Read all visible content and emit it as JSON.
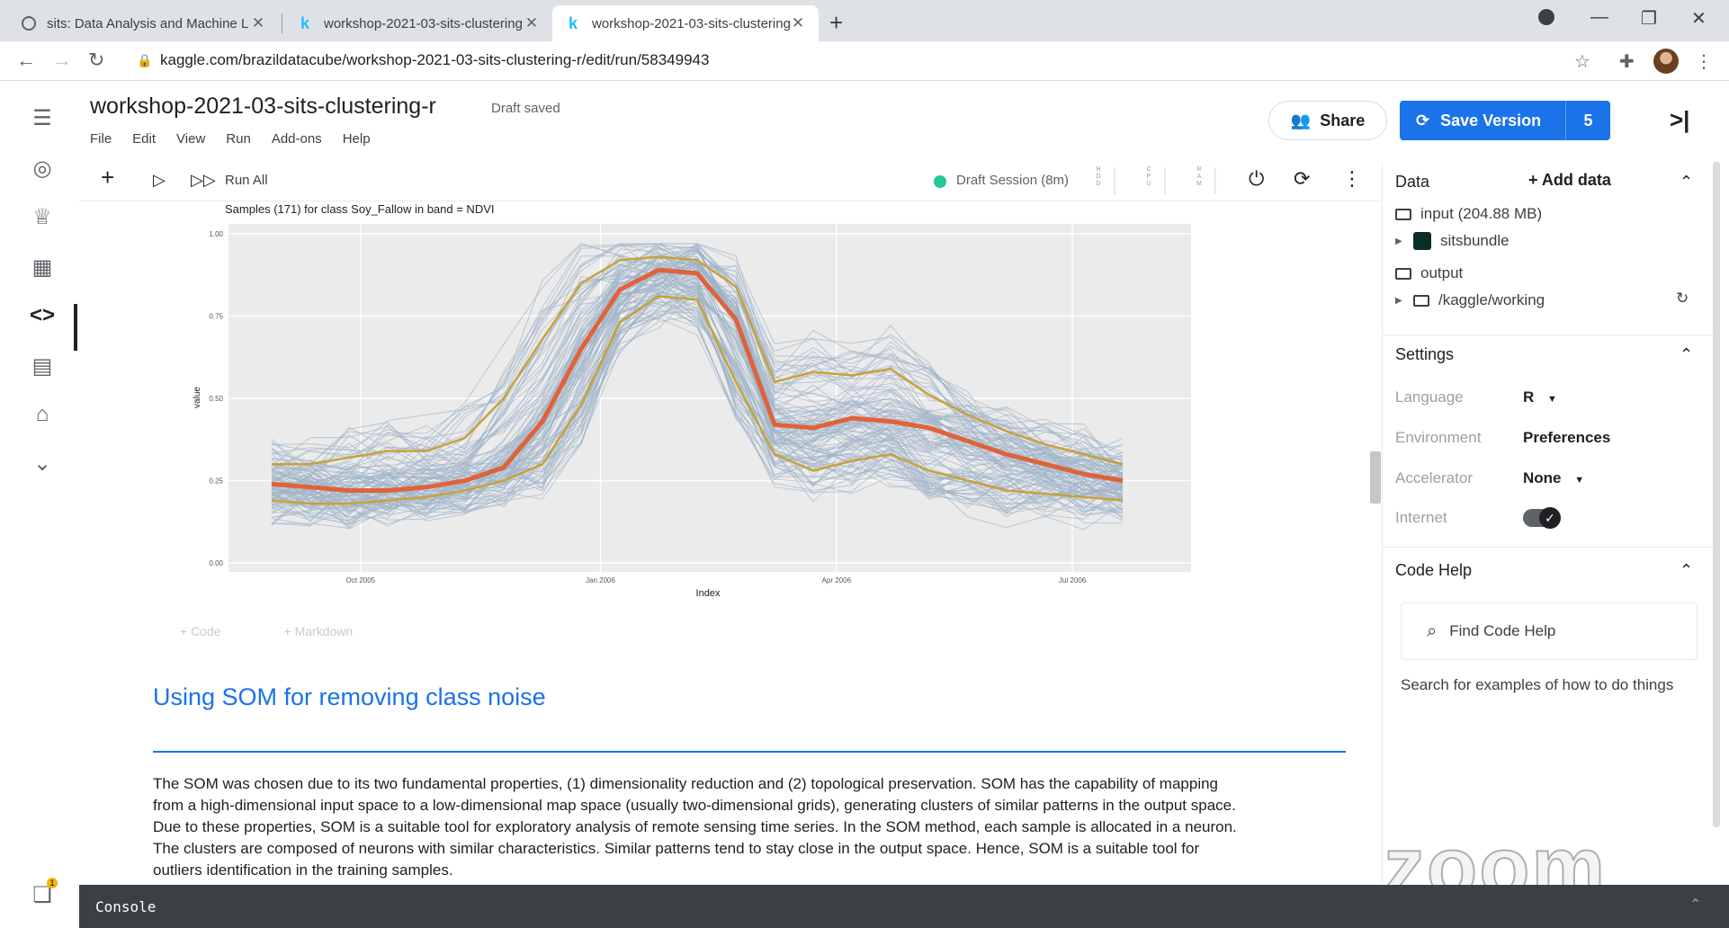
{
  "browser": {
    "tabs": [
      {
        "title": "sits: Data Analysis and Machine L",
        "favicon": "globe-icon",
        "active": false
      },
      {
        "title": "workshop-2021-03-sits-clustering",
        "favicon": "kaggle-k-icon",
        "active": false
      },
      {
        "title": "workshop-2021-03-sits-clustering",
        "favicon": "kaggle-k-icon",
        "active": true
      }
    ],
    "url": "kaggle.com/brazildatacube/workshop-2021-03-sits-clustering-r/edit/run/58349943"
  },
  "header": {
    "title": "workshop-2021-03-sits-clustering-r",
    "status": "Draft saved",
    "menu": [
      "File",
      "Edit",
      "View",
      "Run",
      "Add-ons",
      "Help"
    ],
    "share_label": "Share",
    "save_version_label": "Save Version",
    "save_version_count": "5"
  },
  "toolbar": {
    "run_all_label": "Run All",
    "session_label": "Draft Session (8m)",
    "session_color": "#20c997",
    "meters": [
      "H\nD\nD",
      "C\nP\nU",
      "R\nA\nM"
    ]
  },
  "chart_data": {
    "type": "line",
    "title": "Samples (171) for class Soy_Fallow in band = NDVI",
    "xlabel": "Index",
    "ylabel": "value",
    "x_ticks": [
      "Oct 2005",
      "Jan 2006",
      "Apr 2006",
      "Jul 2006"
    ],
    "y_ticks": [
      "0.00",
      "0.25",
      "0.50",
      "0.75",
      "1.00"
    ],
    "ylim": [
      0,
      1
    ],
    "x": [
      0,
      1,
      2,
      3,
      4,
      5,
      6,
      7,
      8,
      9,
      10,
      11,
      12,
      13,
      14,
      15,
      16,
      17,
      18,
      19,
      20,
      21,
      22
    ],
    "sample_count": 171,
    "grid": true,
    "series": [
      {
        "role": "median",
        "color": "#e0623a",
        "values": [
          0.24,
          0.23,
          0.22,
          0.22,
          0.23,
          0.25,
          0.29,
          0.43,
          0.65,
          0.83,
          0.89,
          0.88,
          0.74,
          0.42,
          0.41,
          0.44,
          0.43,
          0.41,
          0.37,
          0.33,
          0.3,
          0.27,
          0.25
        ]
      },
      {
        "role": "upper quartile",
        "color": "#c9a13a",
        "values": [
          0.3,
          0.3,
          0.32,
          0.34,
          0.34,
          0.38,
          0.5,
          0.68,
          0.85,
          0.92,
          0.93,
          0.92,
          0.84,
          0.55,
          0.58,
          0.57,
          0.59,
          0.51,
          0.45,
          0.4,
          0.36,
          0.33,
          0.3
        ]
      },
      {
        "role": "lower quartile",
        "color": "#c9a13a",
        "values": [
          0.19,
          0.18,
          0.18,
          0.19,
          0.2,
          0.22,
          0.25,
          0.3,
          0.48,
          0.73,
          0.81,
          0.8,
          0.55,
          0.33,
          0.28,
          0.31,
          0.33,
          0.28,
          0.25,
          0.22,
          0.21,
          0.2,
          0.19
        ]
      }
    ],
    "samples_color": "#9fb4c8"
  },
  "cells": {
    "add_code": "+ Code",
    "add_markdown": "+ Markdown"
  },
  "markdown": {
    "heading": "Using SOM for removing class noise",
    "paragraph": "The SOM was chosen due to its two fundamental properties, (1) dimensionality reduction and (2) topological preservation. SOM has the capability of mapping from a high-dimensional input space to a low-dimensional map space (usually two-dimensional grids), generating clusters of similar patterns in the output space. Due to these properties, SOM is a suitable tool for exploratory analysis of remote sensing time series. In the SOM method, each sample is allocated in a neuron. The clusters are composed of neurons with similar characteristics. Similar patterns tend to stay close in the output space. Hence, SOM is a suitable tool for outliers identification in the training samples."
  },
  "panel": {
    "data": {
      "title": "Data",
      "add_label": "Add data",
      "input_label": "input (204.88 MB)",
      "dataset_label": "sitsbundle",
      "output_label": "output",
      "working_label": "/kaggle/working"
    },
    "settings": {
      "title": "Settings",
      "language_label": "Language",
      "language_value": "R",
      "environment_label": "Environment",
      "environment_value": "Preferences",
      "accelerator_label": "Accelerator",
      "accelerator_value": "None",
      "internet_label": "Internet",
      "internet_on": true
    },
    "code_help": {
      "title": "Code Help",
      "search_placeholder": "Find Code Help",
      "hint": "Search for examples of how to do things"
    }
  },
  "console": {
    "label": "Console",
    "notification_count": "1"
  },
  "watermark": "zoom"
}
